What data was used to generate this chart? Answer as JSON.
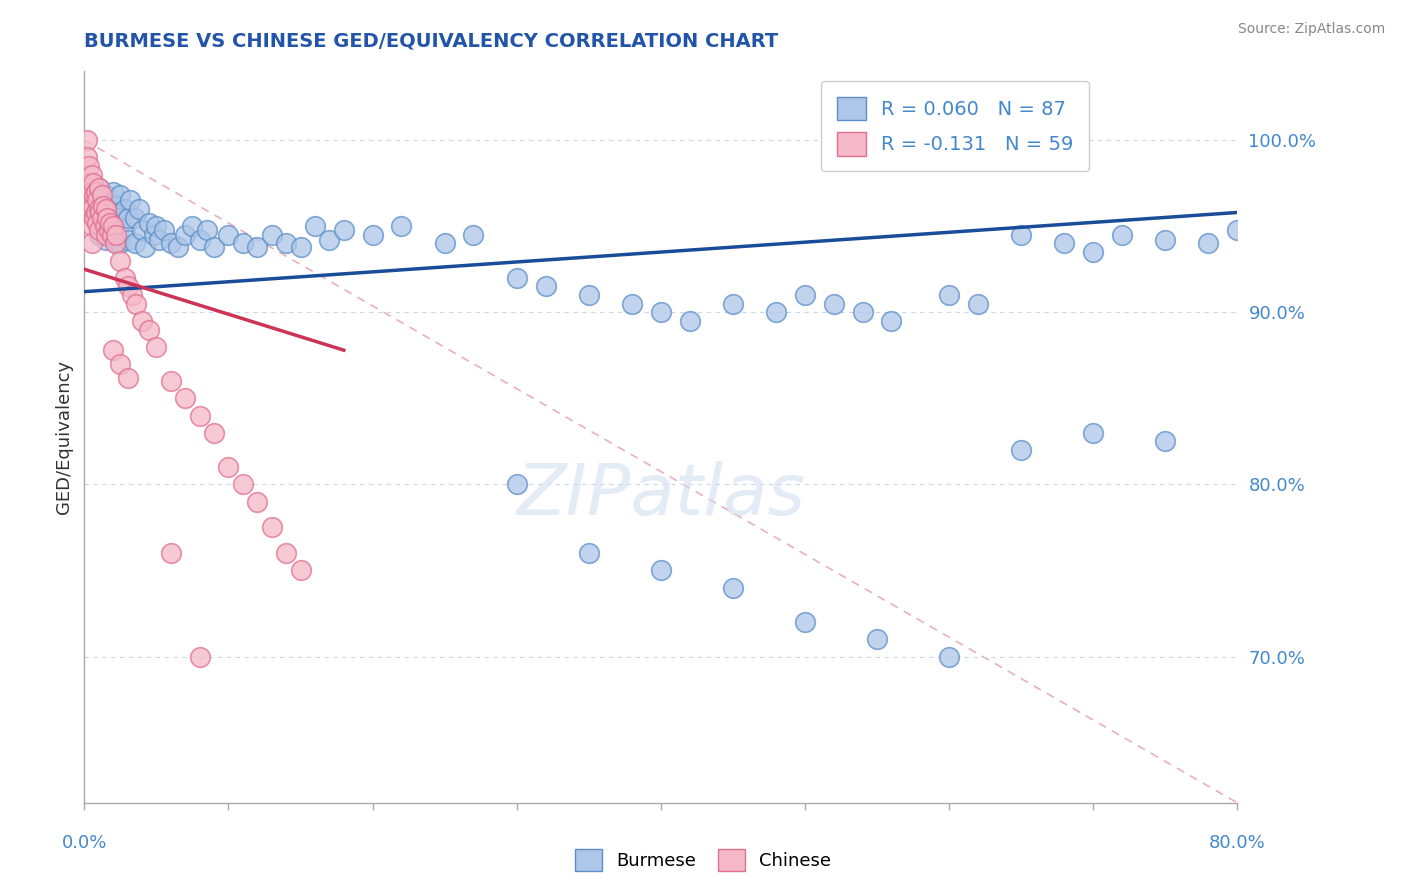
{
  "title": "BURMESE VS CHINESE GED/EQUIVALENCY CORRELATION CHART",
  "source": "Source: ZipAtlas.com",
  "ylabel": "GED/Equivalency",
  "ytick_values": [
    0.7,
    0.8,
    0.9,
    1.0
  ],
  "xlim": [
    0.0,
    0.8
  ],
  "ylim": [
    0.615,
    1.04
  ],
  "legend_blue_label": "Burmese",
  "legend_pink_label": "Chinese",
  "R_blue": 0.06,
  "N_blue": 87,
  "R_pink": -0.131,
  "N_pink": 59,
  "blue_color": "#aec6e8",
  "blue_edge": "#5b8fc9",
  "pink_color": "#f5b8c8",
  "pink_edge": "#e07090",
  "trend_blue_color": "#1a4d99",
  "trend_pink_color": "#cc3355",
  "ref_line_color": "#e8b0c0",
  "title_color": "#2255aa",
  "axis_color": "#4488cc",
  "blue_scatter_x": [
    0.005,
    0.005,
    0.008,
    0.01,
    0.01,
    0.01,
    0.012,
    0.012,
    0.015,
    0.015,
    0.015,
    0.018,
    0.018,
    0.02,
    0.02,
    0.02,
    0.022,
    0.022,
    0.025,
    0.025,
    0.025,
    0.028,
    0.028,
    0.03,
    0.03,
    0.032,
    0.035,
    0.035,
    0.038,
    0.04,
    0.042,
    0.045,
    0.048,
    0.05,
    0.052,
    0.055,
    0.06,
    0.065,
    0.07,
    0.075,
    0.08,
    0.085,
    0.09,
    0.1,
    0.11,
    0.12,
    0.13,
    0.14,
    0.15,
    0.16,
    0.17,
    0.18,
    0.2,
    0.22,
    0.25,
    0.27,
    0.3,
    0.32,
    0.35,
    0.38,
    0.4,
    0.42,
    0.45,
    0.48,
    0.5,
    0.52,
    0.54,
    0.56,
    0.6,
    0.62,
    0.65,
    0.68,
    0.7,
    0.72,
    0.75,
    0.78,
    0.8,
    0.3,
    0.35,
    0.4,
    0.45,
    0.5,
    0.55,
    0.6,
    0.65,
    0.7,
    0.75
  ],
  "blue_scatter_y": [
    0.975,
    0.96,
    0.968,
    0.972,
    0.958,
    0.945,
    0.962,
    0.95,
    0.968,
    0.955,
    0.942,
    0.965,
    0.952,
    0.97,
    0.958,
    0.945,
    0.962,
    0.94,
    0.968,
    0.955,
    0.94,
    0.96,
    0.948,
    0.955,
    0.942,
    0.965,
    0.955,
    0.94,
    0.96,
    0.948,
    0.938,
    0.952,
    0.945,
    0.95,
    0.942,
    0.948,
    0.94,
    0.938,
    0.945,
    0.95,
    0.942,
    0.948,
    0.938,
    0.945,
    0.94,
    0.938,
    0.945,
    0.94,
    0.938,
    0.95,
    0.942,
    0.948,
    0.945,
    0.95,
    0.94,
    0.945,
    0.92,
    0.915,
    0.91,
    0.905,
    0.9,
    0.895,
    0.905,
    0.9,
    0.91,
    0.905,
    0.9,
    0.895,
    0.91,
    0.905,
    0.945,
    0.94,
    0.935,
    0.945,
    0.942,
    0.94,
    0.948,
    0.8,
    0.76,
    0.75,
    0.74,
    0.72,
    0.71,
    0.7,
    0.82,
    0.83,
    0.825
  ],
  "pink_scatter_x": [
    0.002,
    0.002,
    0.003,
    0.003,
    0.004,
    0.004,
    0.005,
    0.005,
    0.005,
    0.005,
    0.005,
    0.006,
    0.006,
    0.007,
    0.007,
    0.008,
    0.008,
    0.009,
    0.009,
    0.01,
    0.01,
    0.01,
    0.011,
    0.012,
    0.012,
    0.013,
    0.014,
    0.015,
    0.015,
    0.016,
    0.017,
    0.018,
    0.019,
    0.02,
    0.021,
    0.022,
    0.025,
    0.028,
    0.03,
    0.033,
    0.036,
    0.04,
    0.045,
    0.05,
    0.06,
    0.07,
    0.08,
    0.09,
    0.1,
    0.11,
    0.12,
    0.13,
    0.14,
    0.15,
    0.02,
    0.025,
    0.03,
    0.06,
    0.08
  ],
  "pink_scatter_y": [
    1.0,
    0.99,
    0.985,
    0.975,
    0.972,
    0.965,
    0.98,
    0.97,
    0.96,
    0.95,
    0.94,
    0.975,
    0.962,
    0.968,
    0.955,
    0.97,
    0.958,
    0.965,
    0.952,
    0.972,
    0.96,
    0.948,
    0.958,
    0.968,
    0.955,
    0.962,
    0.95,
    0.96,
    0.945,
    0.955,
    0.948,
    0.952,
    0.945,
    0.95,
    0.94,
    0.945,
    0.93,
    0.92,
    0.915,
    0.91,
    0.905,
    0.895,
    0.89,
    0.88,
    0.86,
    0.85,
    0.84,
    0.83,
    0.81,
    0.8,
    0.79,
    0.775,
    0.76,
    0.75,
    0.878,
    0.87,
    0.862,
    0.76,
    0.7
  ],
  "blue_trend_x0": 0.0,
  "blue_trend_x1": 0.8,
  "blue_trend_y0": 0.912,
  "blue_trend_y1": 0.958,
  "pink_trend_x0": 0.0,
  "pink_trend_x1": 0.18,
  "pink_trend_y0": 0.925,
  "pink_trend_y1": 0.878,
  "ref_line_x0": 0.0,
  "ref_line_x1": 0.8,
  "ref_line_y0": 1.0,
  "ref_line_y1": 0.615
}
